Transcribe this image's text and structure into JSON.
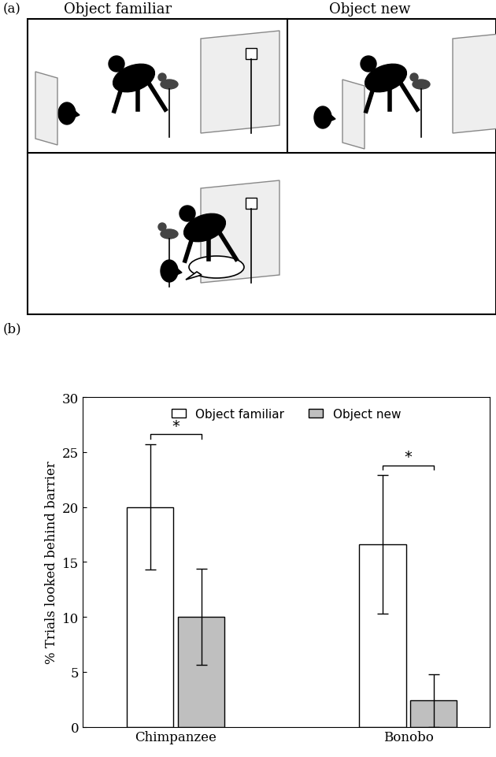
{
  "diagram": {
    "label": "(a)",
    "conditions": [
      "Object familiar",
      "Object new"
    ]
  },
  "chart_data": {
    "type": "bar",
    "panel": "(b)",
    "categories": [
      "Chimpanzee",
      "Bonobo"
    ],
    "y_label": "% Trials looked behind barrier",
    "ylim": [
      0,
      30
    ],
    "yticks": [
      0,
      5,
      10,
      15,
      20,
      25,
      30
    ],
    "legend": "upper center",
    "series": [
      {
        "name": "Object familiar",
        "color": "#ffffff",
        "values": [
          20,
          16.6
        ],
        "errors": [
          5.7,
          6.3
        ]
      },
      {
        "name": "Object new",
        "color": "#bfbfbf",
        "values": [
          10,
          2.4
        ],
        "errors": [
          4.4,
          2.4
        ]
      }
    ],
    "annotations": [
      "*",
      "*"
    ]
  }
}
